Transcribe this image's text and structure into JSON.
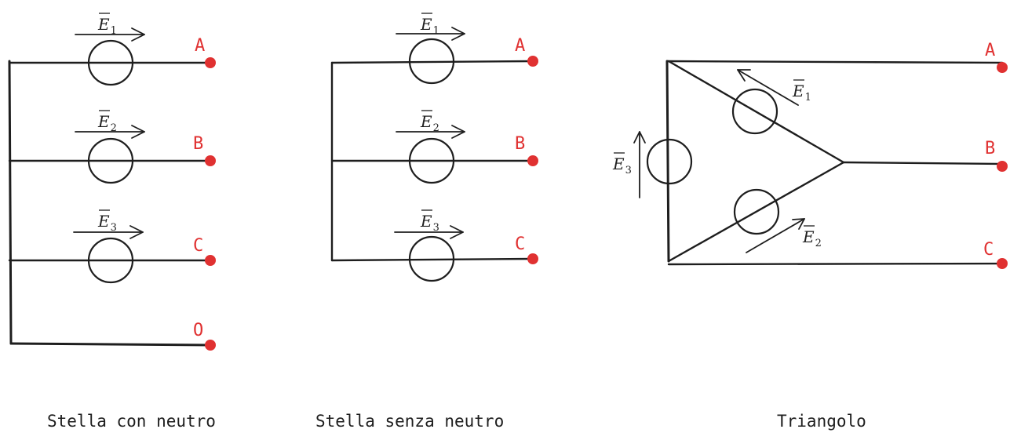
{
  "diagrams": [
    {
      "caption": "Stella con neutro",
      "sources": [
        {
          "symbol": "E",
          "sub": "1"
        },
        {
          "symbol": "E",
          "sub": "2"
        },
        {
          "symbol": "E",
          "sub": "3"
        }
      ],
      "terminals": [
        "A",
        "B",
        "C",
        "O"
      ]
    },
    {
      "caption": "Stella senza neutro",
      "sources": [
        {
          "symbol": "E",
          "sub": "1"
        },
        {
          "symbol": "E",
          "sub": "2"
        },
        {
          "symbol": "E",
          "sub": "3"
        }
      ],
      "terminals": [
        "A",
        "B",
        "C"
      ]
    },
    {
      "caption": "Triangolo",
      "sources": [
        {
          "symbol": "E",
          "sub": "1"
        },
        {
          "symbol": "E",
          "sub": "2"
        },
        {
          "symbol": "E",
          "sub": "3"
        }
      ],
      "terminals": [
        "A",
        "B",
        "C"
      ]
    }
  ],
  "colors": {
    "wire": "#1e1e1e",
    "terminal": "#e03131"
  }
}
